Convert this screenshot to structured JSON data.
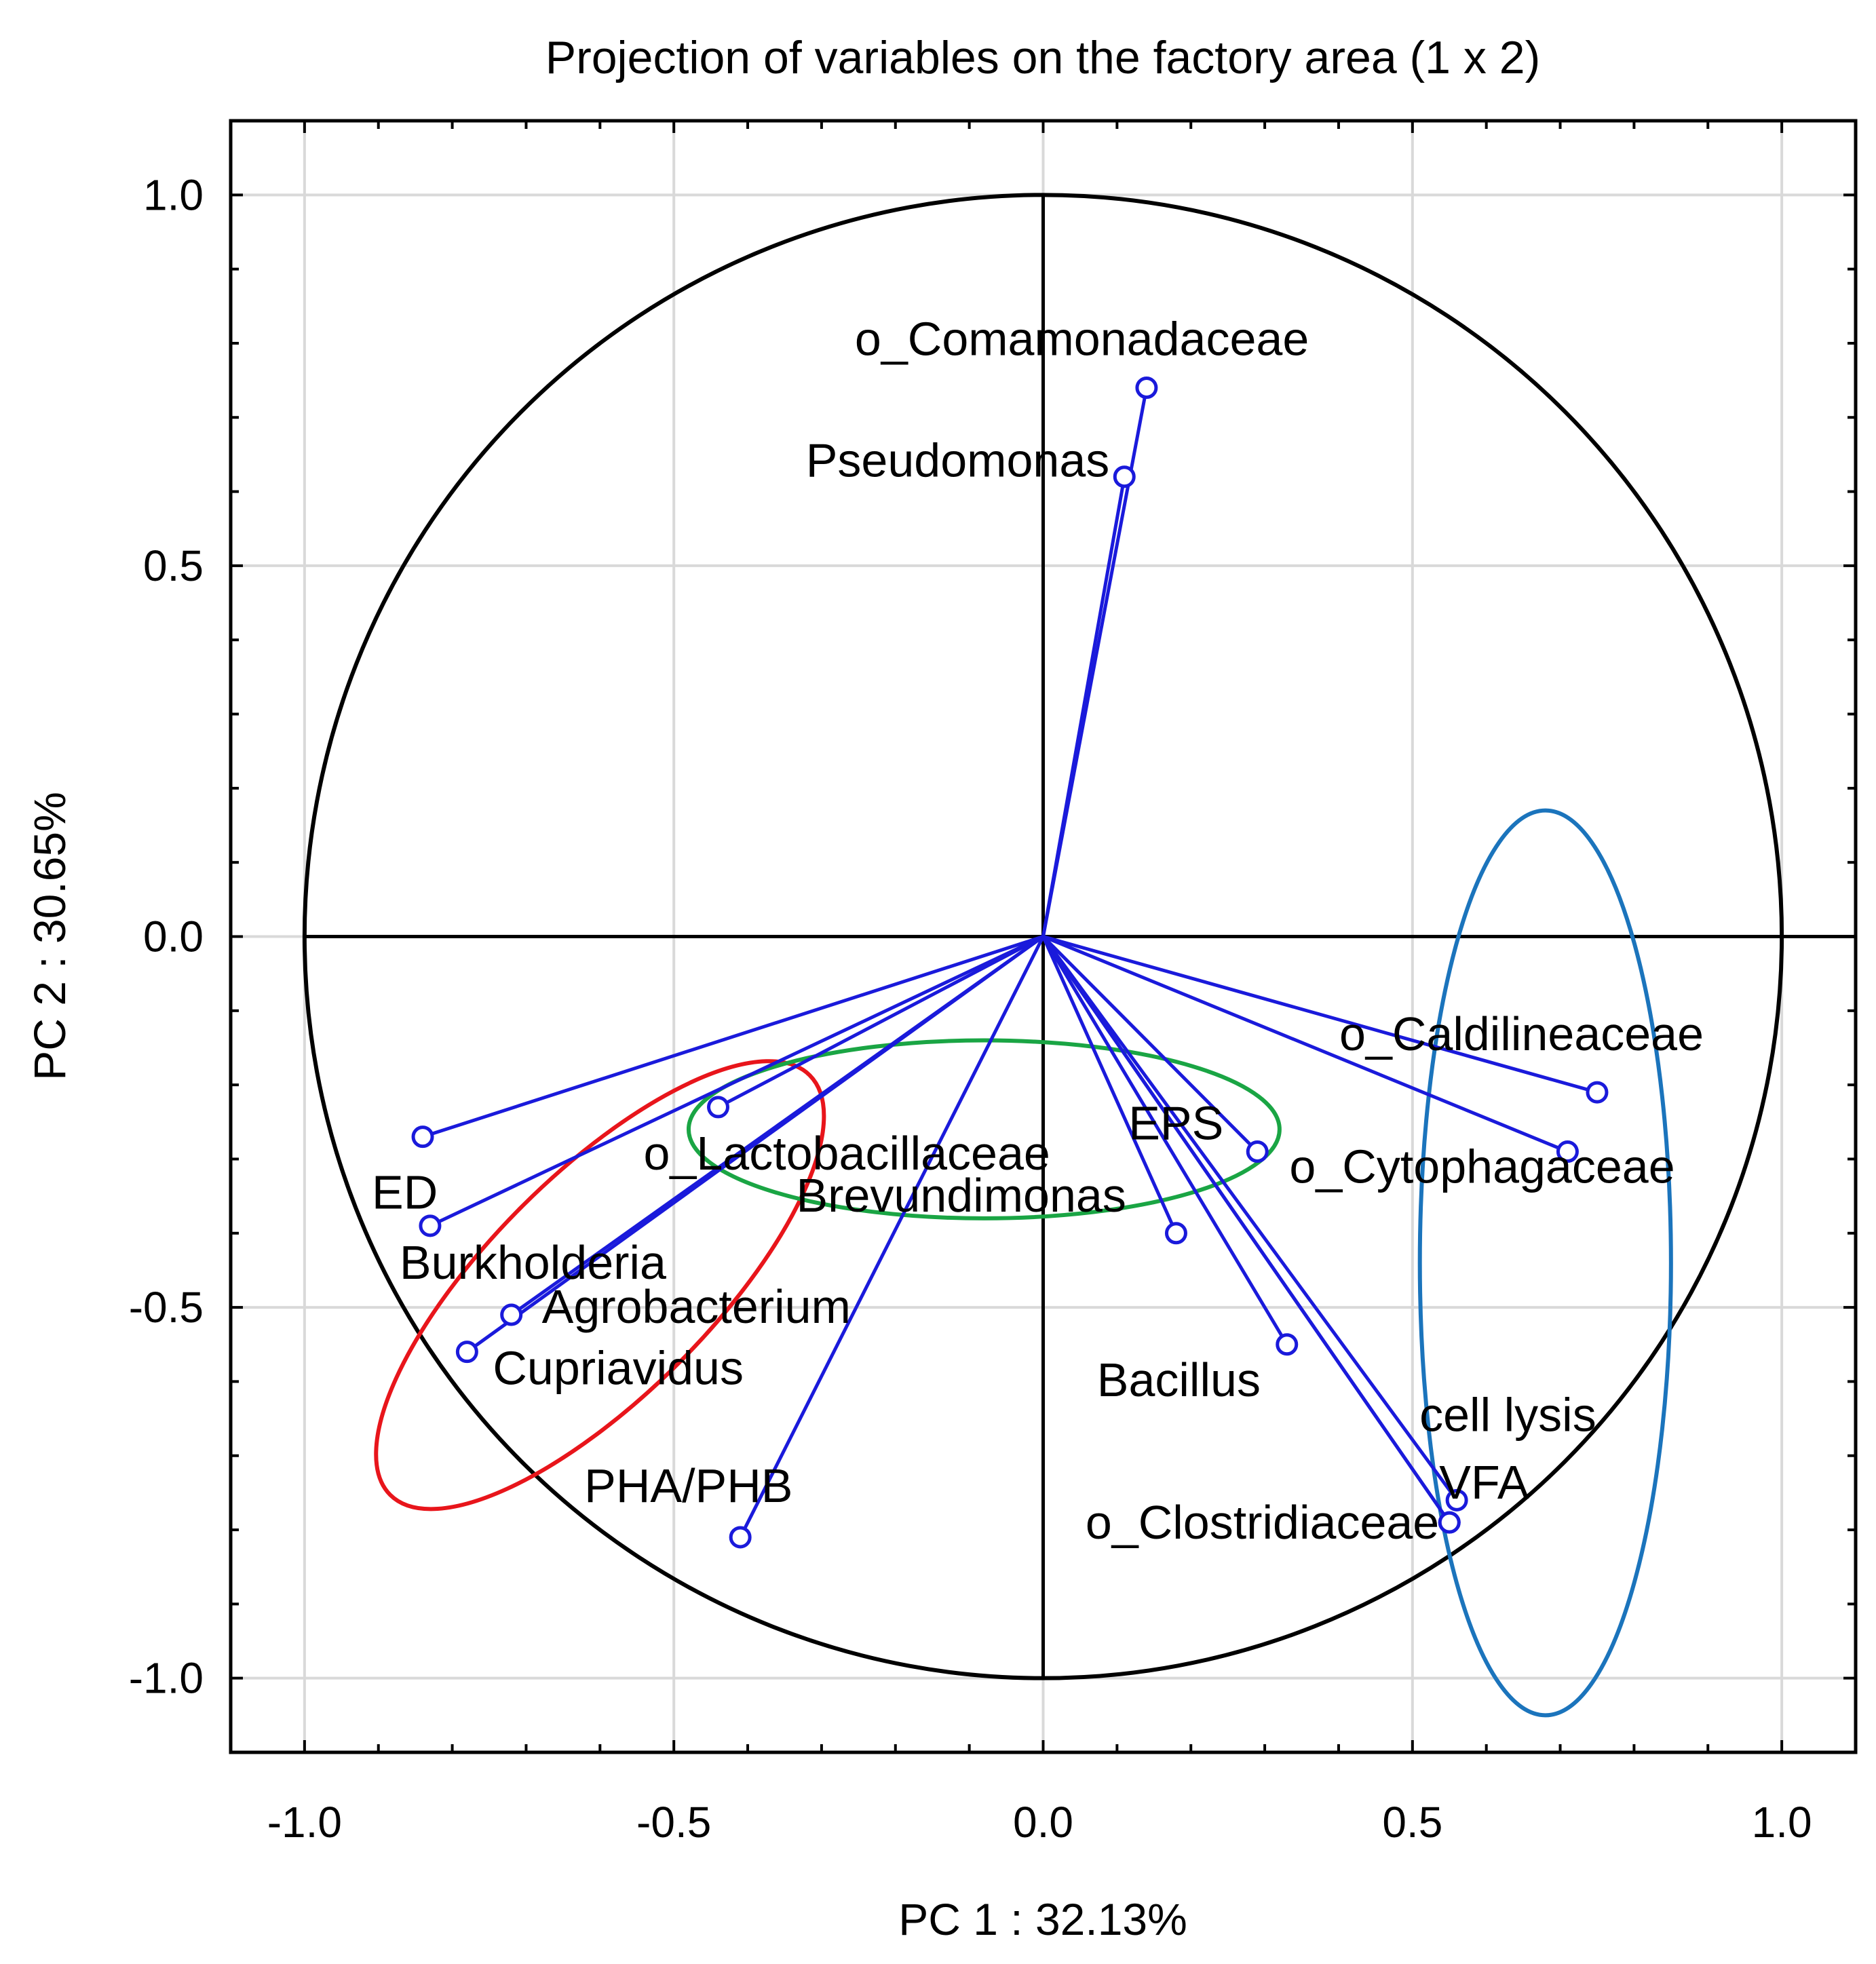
{
  "chart_data": {
    "type": "scatter",
    "subtype": "pca-correlation-circle",
    "title": "Projection of variables on the factory area (1 x 2)",
    "xlabel": "PC 1 : 32.13%",
    "ylabel": "PC 2 : 30.65%",
    "xlim": [
      -1.1,
      1.1
    ],
    "ylim": [
      -1.1,
      1.1
    ],
    "xticks": [
      -1.0,
      -0.5,
      0.0,
      0.5,
      1.0
    ],
    "yticks": [
      -1.0,
      -0.5,
      0.0,
      0.5,
      1.0
    ],
    "xtick_labels": [
      "-1.0",
      "-0.5",
      "0.0",
      "0.5",
      "1.0"
    ],
    "ytick_labels": [
      "1.0",
      "0.5",
      "0.0",
      "-0.5",
      "-1.0"
    ],
    "grid": true,
    "unit_circle": true,
    "vector_color": "#1a1adb",
    "variables": [
      {
        "name": "o_Comamonadaceae",
        "x": 0.14,
        "y": 0.74
      },
      {
        "name": "Pseudomonas",
        "x": 0.11,
        "y": 0.62
      },
      {
        "name": "o_Caldilineaceae",
        "x": 0.75,
        "y": -0.21
      },
      {
        "name": "o_Cytophagaceae",
        "x": 0.71,
        "y": -0.29
      },
      {
        "name": "EPS",
        "x": 0.29,
        "y": -0.29
      },
      {
        "name": "o_Lactobacillaceae",
        "x": -0.44,
        "y": -0.23
      },
      {
        "name": "Brevundimonas",
        "x": 0.18,
        "y": -0.4
      },
      {
        "name": "ED",
        "x": -0.84,
        "y": -0.27
      },
      {
        "name": "Burkholderia",
        "x": -0.83,
        "y": -0.39
      },
      {
        "name": "Agrobacterium",
        "x": -0.72,
        "y": -0.51
      },
      {
        "name": "Cupriavidus",
        "x": -0.78,
        "y": -0.56
      },
      {
        "name": "PHA/PHB",
        "x": -0.41,
        "y": -0.81
      },
      {
        "name": "Bacillus",
        "x": 0.33,
        "y": -0.55
      },
      {
        "name": "cell lysis",
        "x": 0.56,
        "y": -0.76
      },
      {
        "name": "VFA",
        "x": 0.55,
        "y": -0.79
      },
      {
        "name": "o_Clostridiaceae",
        "x": 0.55,
        "y": -0.79
      }
    ],
    "groups": [
      {
        "color": "#e8151b",
        "center": [
          -0.6,
          -0.47
        ],
        "radii": [
          0.15,
          0.4
        ],
        "rotation_deg": 45
      },
      {
        "color": "#1aa544",
        "center": [
          -0.08,
          -0.26
        ],
        "radii": [
          0.4,
          0.12
        ],
        "rotation_deg": 0
      },
      {
        "color": "#1b74bc",
        "center": [
          0.68,
          -0.44
        ],
        "radii": [
          0.17,
          0.61
        ],
        "rotation_deg": 0
      }
    ]
  }
}
